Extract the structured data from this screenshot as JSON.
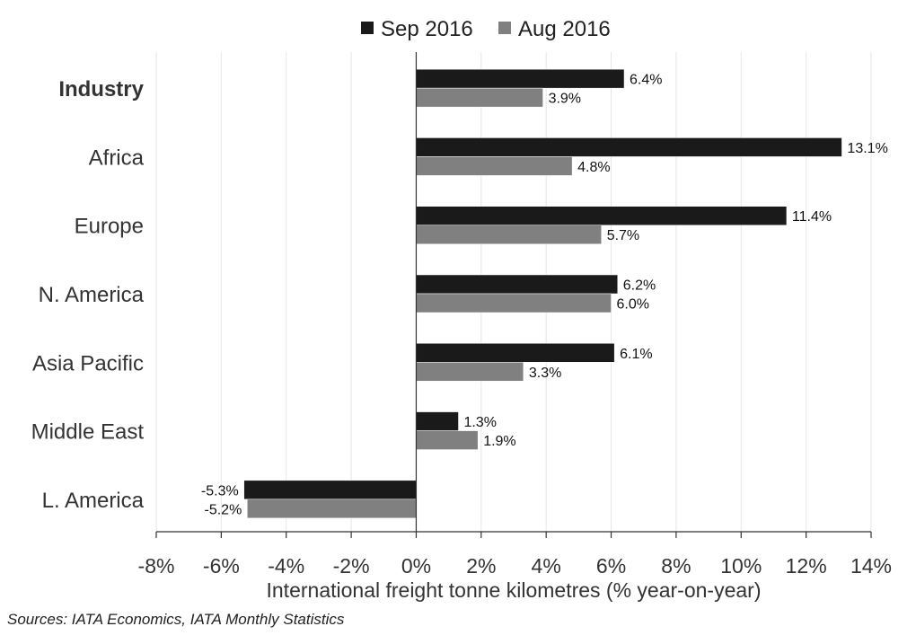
{
  "chart_data": {
    "type": "bar",
    "orientation": "horizontal",
    "categories": [
      "Industry",
      "Africa",
      "Europe",
      "N. America",
      "Asia Pacific",
      "Middle East",
      "L. America"
    ],
    "series": [
      {
        "name": "Sep 2016",
        "color": "#1a1a1a",
        "values": [
          6.4,
          13.1,
          11.4,
          6.2,
          6.1,
          1.3,
          -5.3
        ],
        "labels": [
          "6.4%",
          "13.1%",
          "11.4%",
          "6.2%",
          "6.1%",
          "1.3%",
          "-5.3%"
        ]
      },
      {
        "name": "Aug 2016",
        "color": "#808080",
        "values": [
          3.9,
          4.8,
          5.7,
          6.0,
          3.3,
          1.9,
          -5.2
        ],
        "labels": [
          "3.9%",
          "4.8%",
          "5.7%",
          "6.0%",
          "3.3%",
          "1.9%",
          "-5.2%"
        ]
      }
    ],
    "xlabel": "International freight tonne kilometres (% year-on-year)",
    "xlim": [
      -8,
      14
    ],
    "xticks": [
      -8,
      -6,
      -4,
      -2,
      0,
      2,
      4,
      6,
      8,
      10,
      12,
      14
    ],
    "xtick_labels": [
      "-8%",
      "-6%",
      "-4%",
      "-2%",
      "0%",
      "2%",
      "4%",
      "6%",
      "8%",
      "10%",
      "12%",
      "14%"
    ],
    "grid": "vertical",
    "legend": "top-center",
    "bold_category": "Industry"
  },
  "source": "Sources: IATA Economics, IATA Monthly Statistics"
}
